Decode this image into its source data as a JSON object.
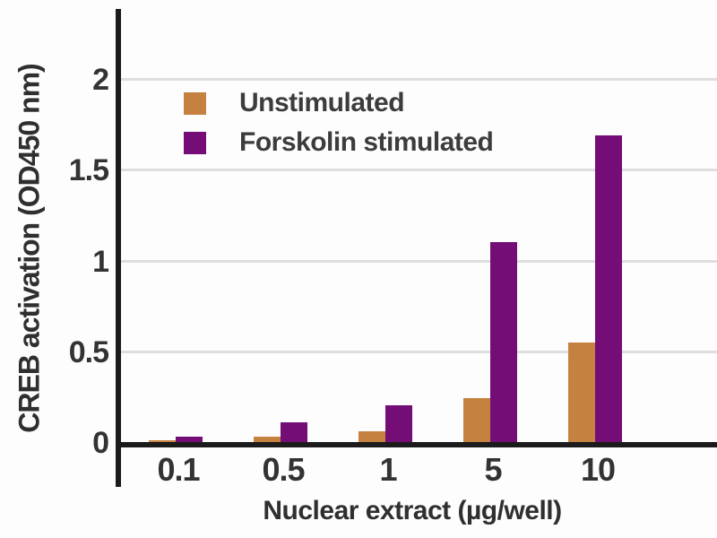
{
  "chart_data": {
    "type": "bar",
    "title": "",
    "xlabel": "Nuclear extract (µg/well)",
    "ylabel": "CREB activation (OD450 nm)",
    "categories": [
      "0.1",
      "0.5",
      "1",
      "5",
      "10"
    ],
    "series": [
      {
        "name": "Unstimulated",
        "color": "#c5813f",
        "values": [
          0.01,
          0.03,
          0.06,
          0.24,
          0.55
        ]
      },
      {
        "name": "Forskolin stimulated",
        "color": "#750d76",
        "values": [
          0.03,
          0.11,
          0.2,
          1.1,
          1.69
        ]
      }
    ],
    "yticks": [
      0,
      0.5,
      1,
      1.5,
      2
    ],
    "ytick_labels": [
      "0",
      "0.5",
      "1",
      "1.5",
      "2"
    ],
    "ylim": [
      0,
      2.4
    ],
    "grid": true,
    "legend_position": "top-left"
  },
  "colors": {
    "axis": "#1b1b1b",
    "gridline": "#dedede",
    "tick_text": "#333333",
    "title_text": "#2f2f2f",
    "legend_text": "#3c3c3c",
    "background": "#fdfdfd",
    "unstimulated": "#c5813f",
    "forskolin": "#750d76"
  }
}
